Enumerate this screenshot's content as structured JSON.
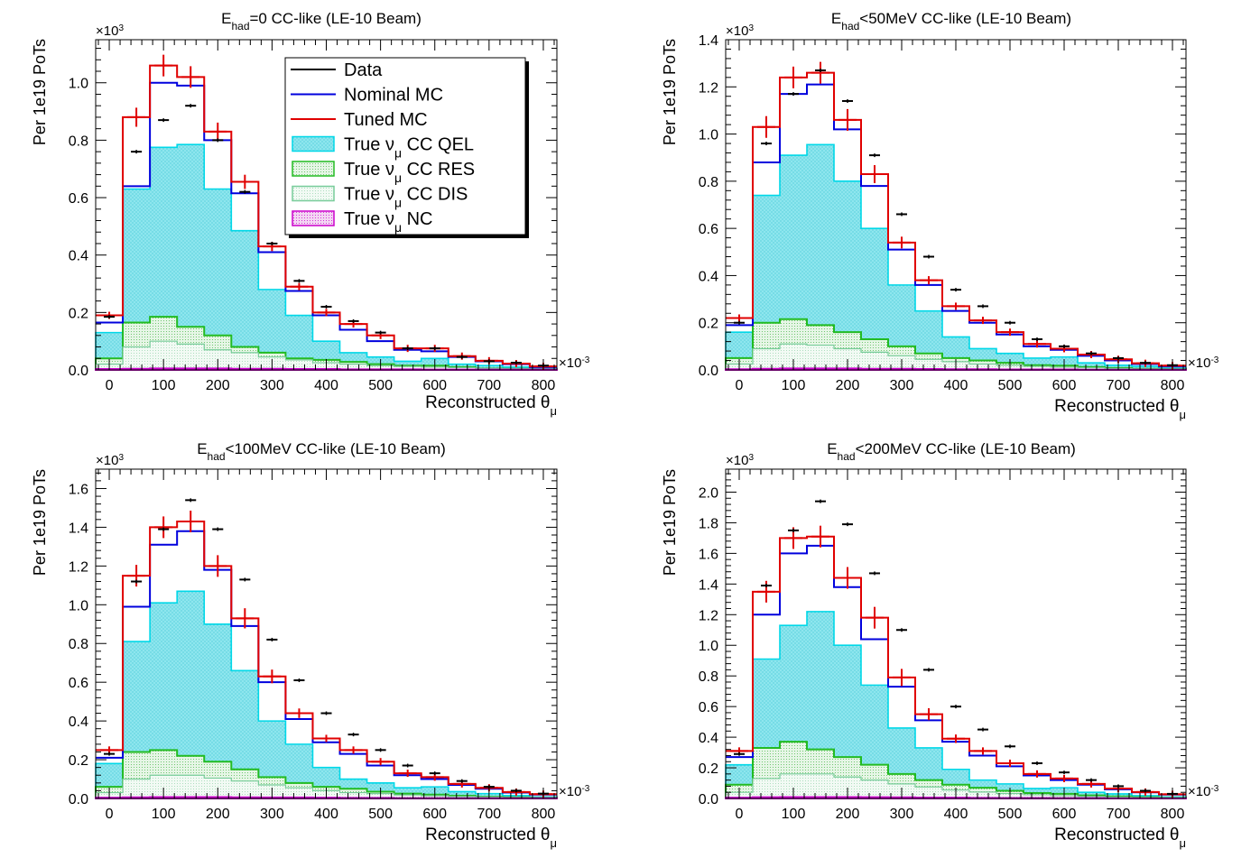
{
  "figure": {
    "ylabel": "Per 1e19 PoTs",
    "xlabel_main": "Reconstructed θ",
    "xlabel_sub": "μ",
    "y_exponent": "×10",
    "y_exponent_power": "3",
    "x_exponent": "×10",
    "x_exponent_power": "-3",
    "legend": {
      "data": "Data",
      "nominal": "Nominal MC",
      "tuned": "Tuned MC",
      "qel": "True ν",
      "qel_sub": "μ",
      "qel_suffix": " CC QEL",
      "res": "True ν",
      "res_sub": "μ",
      "res_suffix": " CC RES",
      "dis": "True ν",
      "dis_sub": "μ",
      "dis_suffix": " CC DIS",
      "nc": "True ν",
      "nc_sub": "μ",
      "nc_suffix": " NC"
    },
    "colors": {
      "data": "#000000",
      "nominal": "#0000dd",
      "tuned": "#e00000",
      "qel_line": "#00d8e8",
      "qel_fill": "#8ee6ee",
      "res": "#22bb22",
      "dis": "#77cc99",
      "nc": "#cc00cc"
    }
  },
  "chart_data": [
    {
      "type": "bar",
      "title_pre": "E",
      "title_sub": "had",
      "title_post": "=0 CC-like (LE-10 Beam)",
      "xlim": [
        -25,
        825
      ],
      "ylim": [
        0,
        1.15
      ],
      "yticks": [
        0.0,
        0.2,
        0.4,
        0.6,
        0.8,
        1.0
      ],
      "xticks": [
        0,
        100,
        200,
        300,
        400,
        500,
        600,
        700,
        800
      ],
      "bins": [
        -25,
        25,
        75,
        125,
        175,
        225,
        275,
        325,
        375,
        425,
        475,
        525,
        575,
        625,
        675,
        725,
        775,
        825
      ],
      "data": [
        0.185,
        0.76,
        0.87,
        0.92,
        0.8,
        0.62,
        0.44,
        0.31,
        0.22,
        0.17,
        0.13,
        0.075,
        0.075,
        0.045,
        0.03,
        0.025,
        0.015
      ],
      "nominal": [
        0.165,
        0.64,
        1.0,
        0.99,
        0.8,
        0.615,
        0.41,
        0.275,
        0.19,
        0.14,
        0.1,
        0.07,
        0.065,
        0.045,
        0.03,
        0.02,
        0.01
      ],
      "tuned": [
        0.19,
        0.88,
        1.06,
        1.02,
        0.83,
        0.655,
        0.43,
        0.29,
        0.2,
        0.16,
        0.12,
        0.075,
        0.075,
        0.048,
        0.032,
        0.022,
        0.012
      ],
      "qel": [
        0.13,
        0.63,
        0.775,
        0.785,
        0.63,
        0.485,
        0.28,
        0.19,
        0.1,
        0.06,
        0.045,
        0.03,
        0.04,
        0.02,
        0.015,
        0.01,
        0.005
      ],
      "res": [
        0.04,
        0.165,
        0.185,
        0.15,
        0.12,
        0.08,
        0.06,
        0.04,
        0.035,
        0.028,
        0.02,
        0.015,
        0.015,
        0.01,
        0.005,
        0.004,
        0.002
      ],
      "dis": [
        0.02,
        0.08,
        0.1,
        0.09,
        0.07,
        0.06,
        0.045,
        0.035,
        0.025,
        0.02,
        0.015,
        0.012,
        0.01,
        0.008,
        0.005,
        0.004,
        0.002
      ],
      "nc": [
        0.003,
        0.004,
        0.005,
        0.005,
        0.005,
        0.004,
        0.004,
        0.003,
        0.003,
        0.002,
        0.002,
        0.002,
        0.001,
        0.001,
        0.001,
        0.001,
        0.001
      ]
    },
    {
      "type": "bar",
      "title_pre": "E",
      "title_sub": "had",
      "title_post": "<50MeV CC-like (LE-10 Beam)",
      "xlim": [
        -25,
        825
      ],
      "ylim": [
        0,
        1.4
      ],
      "yticks": [
        0.0,
        0.2,
        0.4,
        0.6,
        0.8,
        1.0,
        1.2,
        1.4
      ],
      "xticks": [
        0,
        100,
        200,
        300,
        400,
        500,
        600,
        700,
        800
      ],
      "bins": [
        -25,
        25,
        75,
        125,
        175,
        225,
        275,
        325,
        375,
        425,
        475,
        525,
        575,
        625,
        675,
        725,
        775,
        825
      ],
      "data": [
        0.2,
        0.96,
        1.17,
        1.27,
        1.14,
        0.91,
        0.66,
        0.48,
        0.34,
        0.27,
        0.2,
        0.13,
        0.1,
        0.07,
        0.05,
        0.03,
        0.02
      ],
      "nominal": [
        0.19,
        0.88,
        1.17,
        1.21,
        1.02,
        0.78,
        0.51,
        0.36,
        0.25,
        0.2,
        0.15,
        0.1,
        0.085,
        0.06,
        0.04,
        0.025,
        0.015
      ],
      "tuned": [
        0.22,
        1.03,
        1.24,
        1.26,
        1.06,
        0.83,
        0.54,
        0.38,
        0.27,
        0.21,
        0.16,
        0.11,
        0.09,
        0.065,
        0.045,
        0.028,
        0.018
      ],
      "qel": [
        0.16,
        0.74,
        0.91,
        0.955,
        0.8,
        0.6,
        0.36,
        0.25,
        0.14,
        0.09,
        0.07,
        0.05,
        0.055,
        0.03,
        0.02,
        0.015,
        0.008
      ],
      "res": [
        0.05,
        0.2,
        0.215,
        0.19,
        0.16,
        0.13,
        0.1,
        0.07,
        0.05,
        0.04,
        0.03,
        0.02,
        0.018,
        0.012,
        0.008,
        0.005,
        0.003
      ],
      "dis": [
        0.025,
        0.09,
        0.11,
        0.105,
        0.09,
        0.075,
        0.06,
        0.045,
        0.035,
        0.025,
        0.02,
        0.015,
        0.012,
        0.009,
        0.006,
        0.004,
        0.002
      ],
      "nc": [
        0.003,
        0.005,
        0.006,
        0.006,
        0.006,
        0.005,
        0.005,
        0.004,
        0.003,
        0.003,
        0.002,
        0.002,
        0.002,
        0.001,
        0.001,
        0.001,
        0.001
      ]
    },
    {
      "type": "bar",
      "title_pre": "E",
      "title_sub": "had",
      "title_post": "<100MeV CC-like (LE-10 Beam)",
      "xlim": [
        -25,
        825
      ],
      "ylim": [
        0,
        1.7
      ],
      "yticks": [
        0.0,
        0.2,
        0.4,
        0.6,
        0.8,
        1.0,
        1.2,
        1.4,
        1.6
      ],
      "xticks": [
        0,
        100,
        200,
        300,
        400,
        500,
        600,
        700,
        800
      ],
      "bins": [
        -25,
        25,
        75,
        125,
        175,
        225,
        275,
        325,
        375,
        425,
        475,
        525,
        575,
        625,
        675,
        725,
        775,
        825
      ],
      "data": [
        0.23,
        1.12,
        1.39,
        1.54,
        1.39,
        1.13,
        0.82,
        0.61,
        0.44,
        0.33,
        0.25,
        0.17,
        0.13,
        0.09,
        0.06,
        0.04,
        0.025
      ],
      "nominal": [
        0.21,
        0.99,
        1.31,
        1.38,
        1.18,
        0.89,
        0.6,
        0.41,
        0.29,
        0.23,
        0.17,
        0.12,
        0.1,
        0.07,
        0.05,
        0.03,
        0.02
      ],
      "tuned": [
        0.25,
        1.15,
        1.4,
        1.43,
        1.2,
        0.93,
        0.63,
        0.44,
        0.31,
        0.25,
        0.19,
        0.13,
        0.11,
        0.075,
        0.055,
        0.033,
        0.022
      ],
      "qel": [
        0.18,
        0.81,
        1.01,
        1.07,
        0.9,
        0.66,
        0.4,
        0.28,
        0.16,
        0.1,
        0.08,
        0.055,
        0.06,
        0.035,
        0.025,
        0.015,
        0.008
      ],
      "res": [
        0.06,
        0.24,
        0.25,
        0.22,
        0.19,
        0.15,
        0.11,
        0.08,
        0.06,
        0.05,
        0.035,
        0.025,
        0.02,
        0.014,
        0.009,
        0.006,
        0.003
      ],
      "dis": [
        0.03,
        0.1,
        0.12,
        0.12,
        0.105,
        0.09,
        0.07,
        0.055,
        0.04,
        0.03,
        0.025,
        0.018,
        0.014,
        0.01,
        0.007,
        0.004,
        0.002
      ],
      "nc": [
        0.004,
        0.006,
        0.007,
        0.007,
        0.007,
        0.006,
        0.005,
        0.005,
        0.004,
        0.003,
        0.003,
        0.002,
        0.002,
        0.001,
        0.001,
        0.001,
        0.001
      ]
    },
    {
      "type": "bar",
      "title_pre": "E",
      "title_sub": "had",
      "title_post": "<200MeV CC-like (LE-10 Beam)",
      "xlim": [
        -25,
        825
      ],
      "ylim": [
        0,
        2.15
      ],
      "yticks": [
        0.0,
        0.2,
        0.4,
        0.6,
        0.8,
        1.0,
        1.2,
        1.4,
        1.6,
        1.8,
        2.0
      ],
      "xticks": [
        0,
        100,
        200,
        300,
        400,
        500,
        600,
        700,
        800
      ],
      "bins": [
        -25,
        25,
        75,
        125,
        175,
        225,
        275,
        325,
        375,
        425,
        475,
        525,
        575,
        625,
        675,
        725,
        775,
        825
      ],
      "data": [
        0.29,
        1.39,
        1.75,
        1.94,
        1.79,
        1.47,
        1.1,
        0.84,
        0.6,
        0.45,
        0.34,
        0.23,
        0.17,
        0.12,
        0.08,
        0.05,
        0.03
      ],
      "nominal": [
        0.27,
        1.2,
        1.6,
        1.65,
        1.38,
        1.04,
        0.73,
        0.51,
        0.37,
        0.28,
        0.21,
        0.15,
        0.12,
        0.09,
        0.06,
        0.04,
        0.025
      ],
      "tuned": [
        0.31,
        1.35,
        1.7,
        1.71,
        1.44,
        1.18,
        0.79,
        0.55,
        0.39,
        0.31,
        0.23,
        0.16,
        0.13,
        0.095,
        0.065,
        0.042,
        0.027
      ],
      "qel": [
        0.22,
        0.91,
        1.13,
        1.22,
        1.0,
        0.74,
        0.46,
        0.33,
        0.19,
        0.12,
        0.095,
        0.065,
        0.07,
        0.04,
        0.03,
        0.018,
        0.01
      ],
      "res": [
        0.09,
        0.33,
        0.37,
        0.32,
        0.27,
        0.22,
        0.16,
        0.12,
        0.09,
        0.07,
        0.05,
        0.035,
        0.03,
        0.02,
        0.013,
        0.008,
        0.004
      ],
      "dis": [
        0.04,
        0.13,
        0.16,
        0.16,
        0.14,
        0.12,
        0.095,
        0.075,
        0.055,
        0.042,
        0.032,
        0.024,
        0.018,
        0.013,
        0.009,
        0.005,
        0.003
      ],
      "nc": [
        0.005,
        0.008,
        0.009,
        0.009,
        0.009,
        0.008,
        0.007,
        0.006,
        0.005,
        0.004,
        0.003,
        0.003,
        0.002,
        0.002,
        0.001,
        0.001,
        0.001
      ]
    }
  ]
}
